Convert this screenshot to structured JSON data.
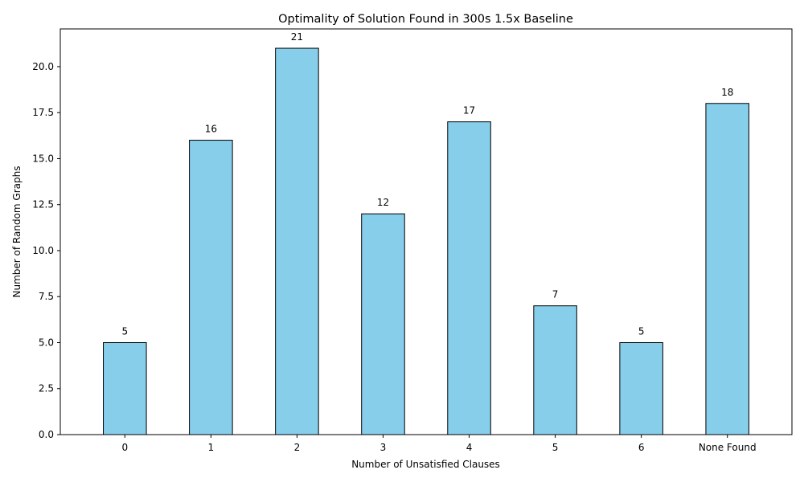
{
  "chart_data": {
    "type": "bar",
    "title": "Optimality of Solution Found in 300s 1.5x Baseline",
    "xlabel": "Number of Unsatisfied Clauses",
    "ylabel": "Number of Random Graphs",
    "categories": [
      "0",
      "1",
      "2",
      "3",
      "4",
      "5",
      "6",
      "None Found"
    ],
    "values": [
      5,
      16,
      21,
      12,
      17,
      7,
      5,
      18
    ],
    "data_labels": [
      "5",
      "16",
      "21",
      "12",
      "17",
      "7",
      "5",
      "18"
    ],
    "ylim": [
      0,
      22.05
    ],
    "yticks": [
      0,
      2.5,
      5,
      7.5,
      10,
      12.5,
      15,
      17.5,
      20
    ],
    "ytick_labels": [
      "0.0",
      "2.5",
      "5.0",
      "7.5",
      "10.0",
      "12.5",
      "15.0",
      "17.5",
      "20.0"
    ],
    "grid": false,
    "legend": "none",
    "colors": {
      "bar_fill": "#87CEEB",
      "bar_edge": "#000000"
    }
  }
}
